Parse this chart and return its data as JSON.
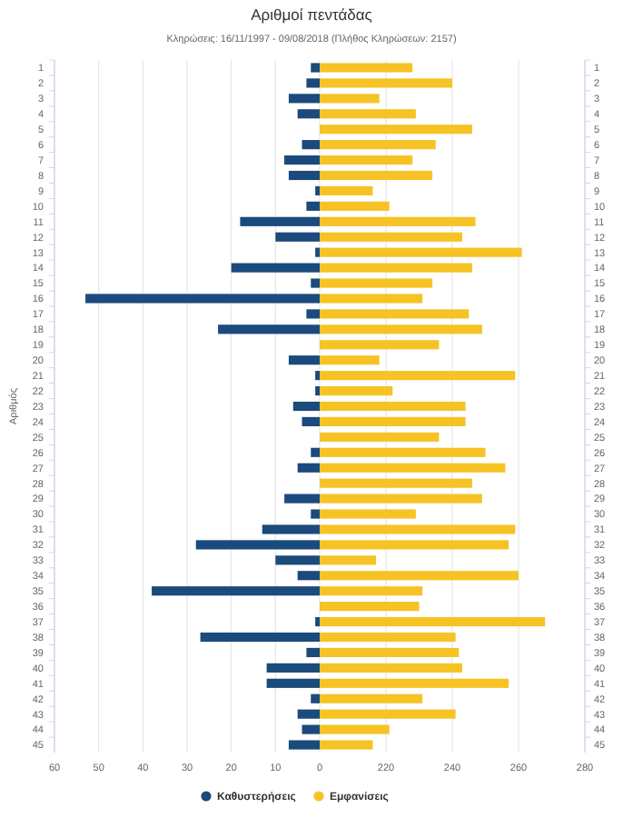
{
  "chart_data": [
    {
      "type": "bar",
      "orientation": "horizontal",
      "title": "Αριθμοί πεντάδας",
      "subtitle": "Κληρώσεις: 16/11/1997 - 09/08/2018 (Πλήθος Κληρώσεων: 2157)",
      "ylabel": "Αριθμός",
      "categories": [
        "1",
        "2",
        "3",
        "4",
        "5",
        "6",
        "7",
        "8",
        "9",
        "10",
        "11",
        "12",
        "13",
        "14",
        "15",
        "16",
        "17",
        "18",
        "19",
        "20",
        "21",
        "22",
        "23",
        "24",
        "25",
        "26",
        "27",
        "28",
        "29",
        "30",
        "31",
        "32",
        "33",
        "34",
        "35",
        "36",
        "37",
        "38",
        "39",
        "40",
        "41",
        "42",
        "43",
        "44",
        "45"
      ],
      "xlim": [
        60,
        0
      ],
      "xticks": [
        60,
        50,
        40,
        30,
        20,
        10,
        0
      ],
      "grid": "x",
      "legend": "bottom",
      "series": [
        {
          "name": "Καθυστερήσεις",
          "color": "#1b4a7c",
          "values": [
            2,
            3,
            7,
            5,
            0,
            4,
            8,
            7,
            1,
            3,
            18,
            10,
            1,
            20,
            2,
            53,
            3,
            23,
            0,
            7,
            1,
            1,
            6,
            4,
            0,
            2,
            5,
            0,
            8,
            2,
            13,
            28,
            10,
            5,
            38,
            0,
            1,
            27,
            3,
            12,
            12,
            2,
            5,
            4,
            7
          ]
        }
      ]
    },
    {
      "type": "bar",
      "orientation": "horizontal",
      "categories": [
        "1",
        "2",
        "3",
        "4",
        "5",
        "6",
        "7",
        "8",
        "9",
        "10",
        "11",
        "12",
        "13",
        "14",
        "15",
        "16",
        "17",
        "18",
        "19",
        "20",
        "21",
        "22",
        "23",
        "24",
        "25",
        "26",
        "27",
        "28",
        "29",
        "30",
        "31",
        "32",
        "33",
        "34",
        "35",
        "36",
        "37",
        "38",
        "39",
        "40",
        "41",
        "42",
        "43",
        "44",
        "45"
      ],
      "xlim": [
        200,
        280
      ],
      "xticks": [
        220,
        240,
        260,
        280
      ],
      "grid": "x",
      "legend": "bottom",
      "series": [
        {
          "name": "Εμφανίσεις",
          "color": "#f6c325",
          "values": [
            228,
            240,
            218,
            229,
            246,
            235,
            228,
            234,
            216,
            221,
            247,
            243,
            261,
            246,
            234,
            231,
            245,
            249,
            236,
            218,
            259,
            222,
            244,
            244,
            236,
            250,
            256,
            246,
            249,
            229,
            259,
            257,
            217,
            260,
            231,
            230,
            268,
            241,
            242,
            243,
            257,
            231,
            241,
            221,
            216
          ]
        }
      ]
    }
  ]
}
